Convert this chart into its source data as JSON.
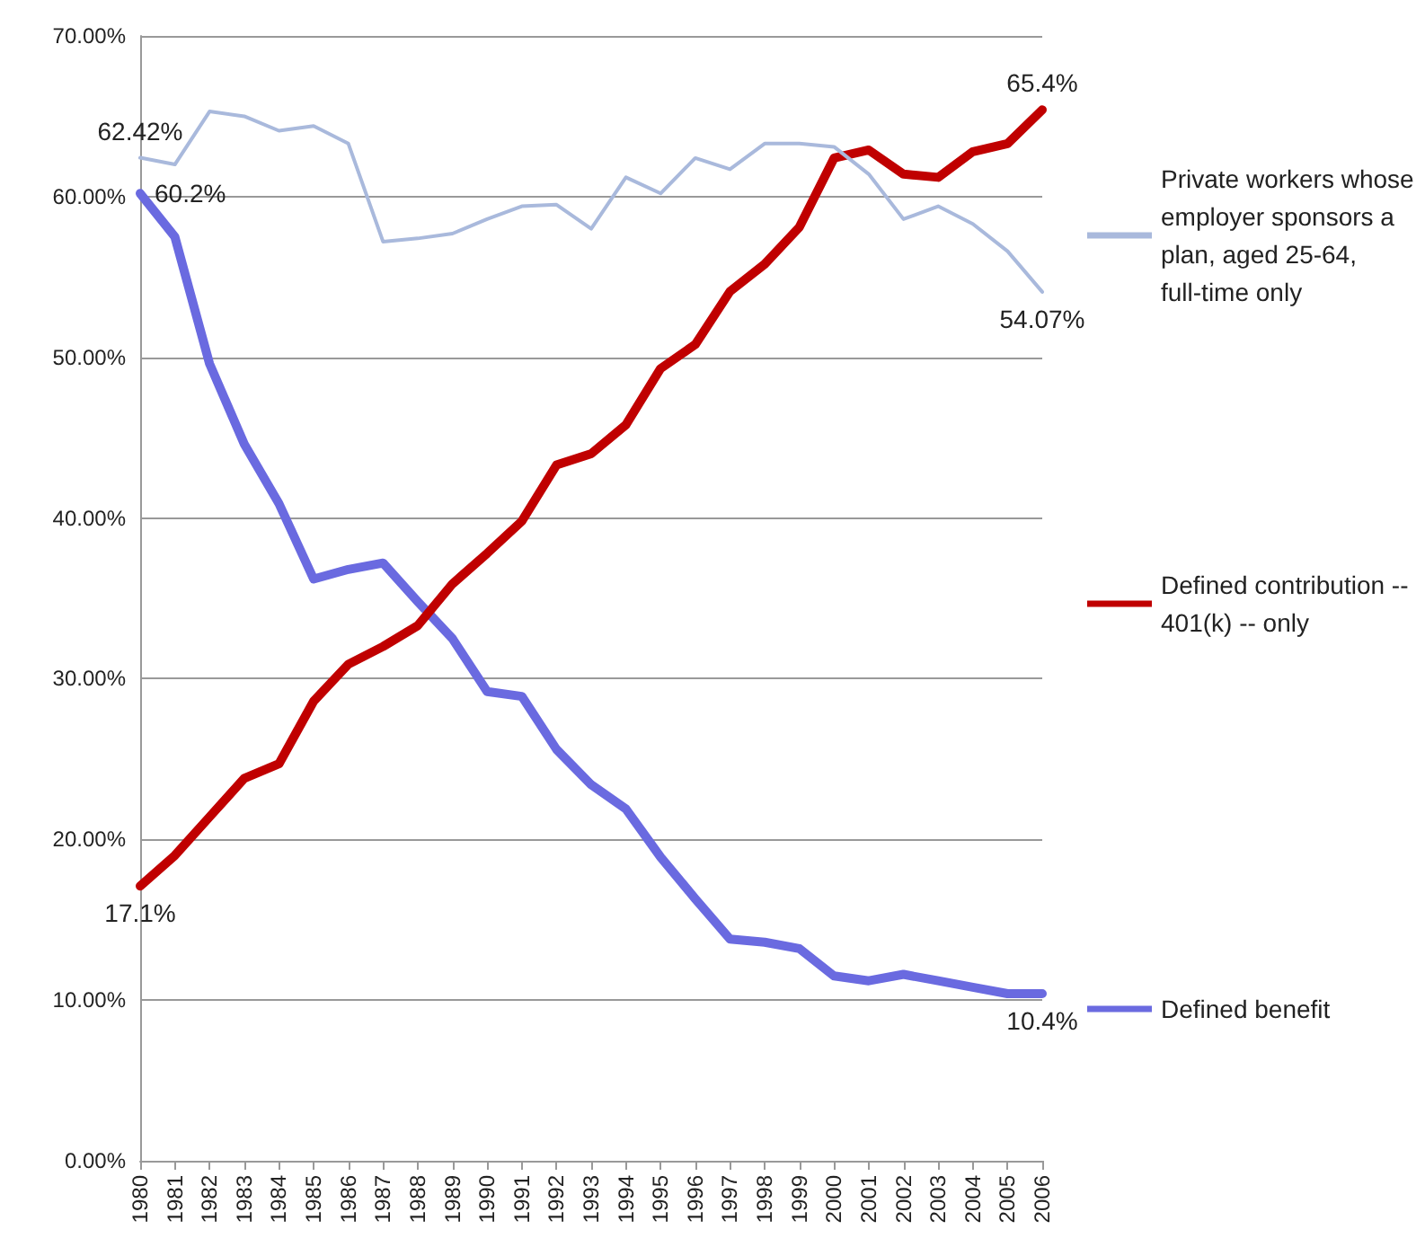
{
  "chart_data": {
    "type": "line",
    "categories": [
      "1980",
      "1981",
      "1982",
      "1983",
      "1984",
      "1985",
      "1986",
      "1987",
      "1988",
      "1989",
      "1990",
      "1991",
      "1992",
      "1993",
      "1994",
      "1995",
      "1996",
      "1997",
      "1998",
      "1999",
      "2000",
      "2001",
      "2002",
      "2003",
      "2004",
      "2005",
      "2006"
    ],
    "series": [
      {
        "name": "Private workers whose employer sponsors a plan, aged 25-64, full-time only",
        "color": "#a9b9dc",
        "values": [
          62.42,
          62.0,
          65.3,
          65.0,
          64.1,
          64.4,
          63.3,
          57.2,
          57.4,
          57.7,
          58.6,
          59.4,
          59.5,
          58.0,
          61.2,
          60.2,
          62.4,
          61.7,
          63.3,
          63.3,
          63.1,
          61.4,
          58.6,
          59.4,
          58.3,
          56.6,
          54.07
        ],
        "value_labels": [
          "62.42%",
          null,
          null,
          null,
          null,
          null,
          null,
          null,
          null,
          null,
          null,
          null,
          null,
          null,
          null,
          null,
          null,
          null,
          null,
          null,
          null,
          null,
          null,
          null,
          null,
          null,
          "54.07%"
        ]
      },
      {
        "name": "Defined contribution -- 401(k) -- only",
        "color": "#c00000",
        "values": [
          17.1,
          19.0,
          21.4,
          23.8,
          24.7,
          28.6,
          30.9,
          32.0,
          33.3,
          35.9,
          37.8,
          39.8,
          43.3,
          44.0,
          45.8,
          49.3,
          50.8,
          54.1,
          55.8,
          58.1,
          62.4,
          62.9,
          61.4,
          61.2,
          62.8,
          63.3,
          65.4
        ],
        "value_labels": [
          "17.1%",
          null,
          null,
          null,
          null,
          null,
          null,
          null,
          null,
          null,
          null,
          null,
          null,
          null,
          null,
          null,
          null,
          null,
          null,
          null,
          null,
          null,
          null,
          null,
          null,
          null,
          "65.4%"
        ]
      },
      {
        "name": "Defined benefit",
        "color": "#6a6ae0",
        "values": [
          60.2,
          57.5,
          49.6,
          44.6,
          40.9,
          36.2,
          36.8,
          37.2,
          34.8,
          32.5,
          29.2,
          28.9,
          25.6,
          23.4,
          21.9,
          18.9,
          16.3,
          13.8,
          13.6,
          13.2,
          11.5,
          11.2,
          11.6,
          11.2,
          10.8,
          10.4,
          10.4
        ],
        "value_labels": [
          "60.2%",
          null,
          null,
          null,
          null,
          null,
          null,
          null,
          null,
          null,
          null,
          null,
          null,
          null,
          null,
          null,
          null,
          null,
          null,
          null,
          null,
          null,
          null,
          null,
          null,
          null,
          "10.4%"
        ]
      }
    ],
    "ylim": [
      0,
      70
    ],
    "yticks": [
      {
        "value": 0,
        "label": "0.00%"
      },
      {
        "value": 10,
        "label": "10.00%"
      },
      {
        "value": 20,
        "label": "20.00%"
      },
      {
        "value": 30,
        "label": "30.00%"
      },
      {
        "value": 40,
        "label": "40.00%"
      },
      {
        "value": 50,
        "label": "50.00%"
      },
      {
        "value": 60,
        "label": "60.00%"
      },
      {
        "value": 70,
        "label": "70.00%"
      }
    ],
    "grid": "y",
    "legend": "right",
    "marker": "none",
    "line_style": "solid"
  }
}
